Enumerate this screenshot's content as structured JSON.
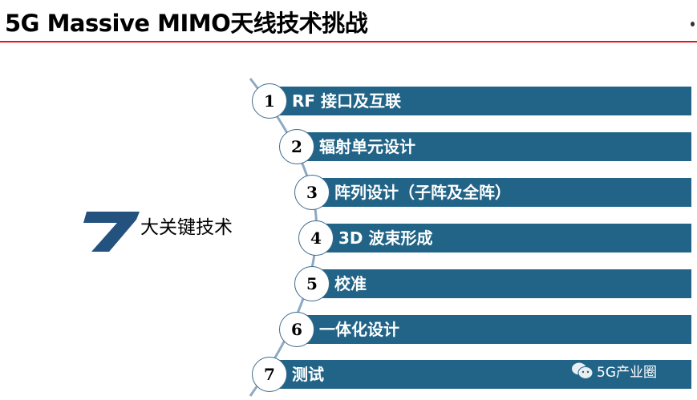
{
  "header": {
    "title": "5G Massive MIMO天线技术挑战",
    "accent_color": "#e8141b"
  },
  "logo": {
    "numeral": "7",
    "label": "大关键技术",
    "color": "#24527e"
  },
  "items": [
    {
      "number": "1",
      "label": "RF 接口及互联"
    },
    {
      "number": "2",
      "label": "辐射单元设计"
    },
    {
      "number": "3",
      "label": "阵列设计（子阵及全阵）"
    },
    {
      "number": "4",
      "label": "3D 波束形成"
    },
    {
      "number": "5",
      "label": "校准"
    },
    {
      "number": "6",
      "label": "一体化设计"
    },
    {
      "number": "7",
      "label": "测试"
    }
  ],
  "bar_color": "#216487",
  "watermark": {
    "icon": "wechat-icon",
    "text": "5G产业圈"
  }
}
